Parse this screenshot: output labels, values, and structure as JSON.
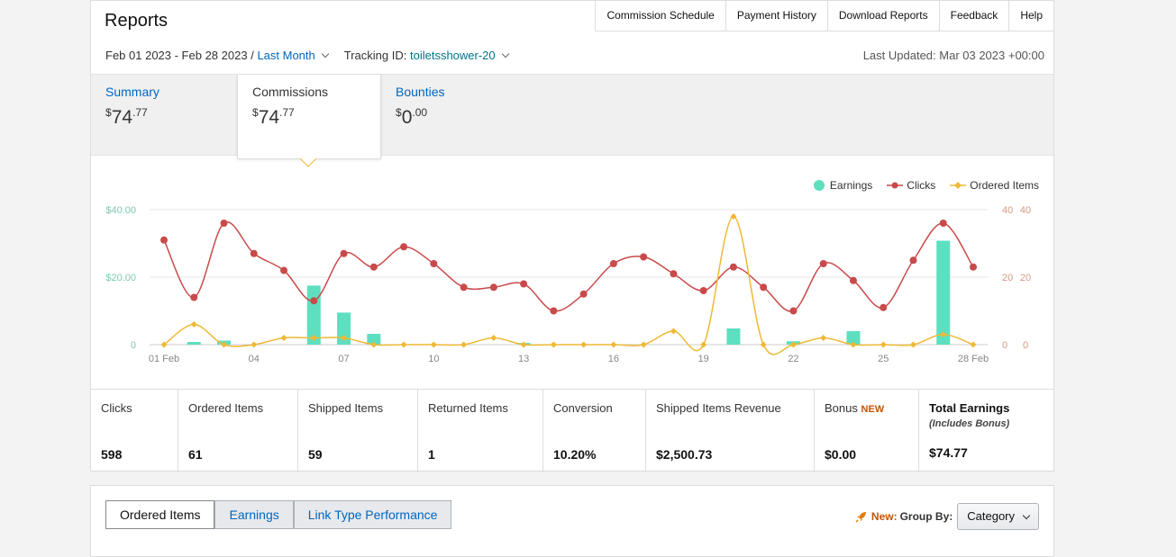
{
  "header": {
    "title": "Reports",
    "nav": [
      "Commission Schedule",
      "Payment History",
      "Download Reports",
      "Feedback",
      "Help"
    ],
    "date_range": "Feb 01 2023 - Feb 28 2023",
    "separator": "/",
    "period": "Last Month",
    "tracking_label": "Tracking ID:",
    "tracking_id": "toiletsshower-20",
    "last_updated": "Last Updated: Mar 03 2023 +00:00"
  },
  "summary_tabs": [
    {
      "label": "Summary",
      "dollar": "$",
      "whole": "74",
      "cents": ".77"
    },
    {
      "label": "Commissions",
      "dollar": "$",
      "whole": "74",
      "cents": ".77"
    },
    {
      "label": "Bounties",
      "dollar": "$",
      "whole": "0",
      "cents": ".00"
    }
  ],
  "legend": [
    {
      "name": "Earnings",
      "color": "#5ddfc0"
    },
    {
      "name": "Clicks",
      "color": "#c94a4a"
    },
    {
      "name": "Ordered Items",
      "color": "#efb935"
    }
  ],
  "chart_data": {
    "type": "line",
    "x": [
      "01 Feb",
      "02",
      "03",
      "04",
      "05",
      "06",
      "07",
      "08",
      "09",
      "10",
      "11",
      "12",
      "13",
      "14",
      "15",
      "16",
      "17",
      "18",
      "19",
      "20",
      "21",
      "22",
      "23",
      "24",
      "25",
      "26",
      "27",
      "28 Feb"
    ],
    "x_tick_labels": [
      "01 Feb",
      "04",
      "07",
      "10",
      "13",
      "16",
      "19",
      "22",
      "25",
      "28 Feb"
    ],
    "y_left_ticks": [
      "$40.00",
      "$20.00",
      "0"
    ],
    "y_right_ticks_a": [
      "40",
      "20",
      "0"
    ],
    "y_right_ticks_b": [
      "40",
      "20",
      "0"
    ],
    "ylim_left": [
      0,
      40
    ],
    "ylim_right": [
      0,
      40
    ],
    "grid": true,
    "series": [
      {
        "name": "Earnings",
        "type": "bar",
        "axis": "left",
        "color": "#5ddfc0",
        "values": [
          0,
          0.8,
          1.2,
          0,
          0,
          17.5,
          9.5,
          3.2,
          0,
          0,
          0,
          0,
          0.5,
          0,
          0,
          0,
          0,
          0,
          0,
          4.8,
          0,
          1.0,
          0,
          4.0,
          0,
          0,
          30.8,
          0
        ]
      },
      {
        "name": "Clicks",
        "type": "line",
        "axis": "right",
        "color": "#c94a4a",
        "values": [
          31,
          14,
          36,
          27,
          22,
          13,
          27,
          23,
          29,
          24,
          17,
          17,
          18,
          10,
          15,
          24,
          26,
          21,
          16,
          23,
          17,
          10,
          24,
          19,
          11,
          25,
          36,
          23
        ]
      },
      {
        "name": "Ordered Items",
        "type": "line",
        "axis": "right",
        "color": "#efb935",
        "values": [
          0,
          6,
          0,
          0,
          2,
          2,
          2,
          0,
          0,
          0,
          0,
          2,
          0,
          0,
          0,
          0,
          0,
          4,
          0,
          38,
          0,
          0,
          2,
          0,
          0,
          0,
          3,
          0
        ]
      }
    ]
  },
  "stats": [
    {
      "label": "Clicks",
      "value": "598"
    },
    {
      "label": "Ordered Items",
      "value": "61"
    },
    {
      "label": "Shipped Items",
      "value": "59"
    },
    {
      "label": "Returned Items",
      "value": "1"
    },
    {
      "label": "Conversion",
      "value": "10.20%"
    },
    {
      "label": "Shipped Items Revenue",
      "value": "$2,500.73"
    },
    {
      "label": "Bonus",
      "badge": "NEW",
      "value": "$0.00"
    },
    {
      "label": "Total Earnings",
      "sub": "(Includes Bonus)",
      "value": "$74.77"
    }
  ],
  "bottom": {
    "tabs": [
      "Ordered Items",
      "Earnings",
      "Link Type Performance"
    ],
    "new_label": "New:",
    "group_by_label": "Group By:",
    "group_by_value": "Category"
  }
}
